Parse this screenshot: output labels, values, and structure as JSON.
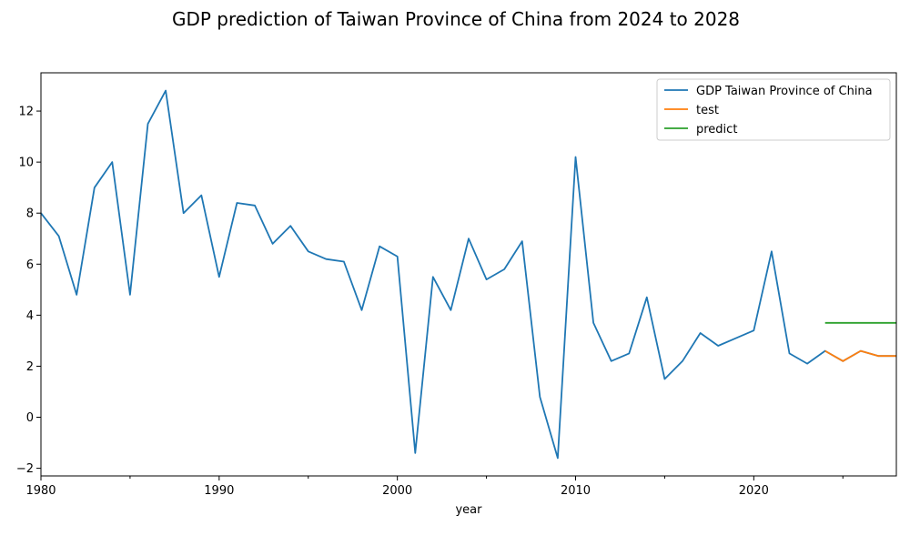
{
  "chart_data": {
    "type": "line",
    "title": "GDP prediction of Taiwan Province of China from 2024 to 2028",
    "xlabel": "year",
    "ylabel": "",
    "xlim": [
      1980,
      2028
    ],
    "ylim": [
      -2.3,
      13.5
    ],
    "x_ticks": [
      1980,
      1990,
      2000,
      2010,
      2020
    ],
    "y_ticks": [
      -2,
      0,
      2,
      4,
      6,
      8,
      10,
      12
    ],
    "grid": false,
    "legend_position": "top-right",
    "series": [
      {
        "name": "GDP Taiwan Province of China",
        "color": "#1f77b4",
        "x": [
          1980,
          1981,
          1982,
          1983,
          1984,
          1985,
          1986,
          1987,
          1988,
          1989,
          1990,
          1991,
          1992,
          1993,
          1994,
          1995,
          1996,
          1997,
          1998,
          1999,
          2000,
          2001,
          2002,
          2003,
          2004,
          2005,
          2006,
          2007,
          2008,
          2009,
          2010,
          2011,
          2012,
          2013,
          2014,
          2015,
          2016,
          2017,
          2018,
          2019,
          2020,
          2021,
          2022,
          2023,
          2024,
          2025,
          2026,
          2027,
          2028
        ],
        "values": [
          8.0,
          7.1,
          4.8,
          9.0,
          10.0,
          4.8,
          11.5,
          12.8,
          8.0,
          8.7,
          5.5,
          8.4,
          8.3,
          6.8,
          7.5,
          6.5,
          6.2,
          6.1,
          4.2,
          6.7,
          6.3,
          -1.4,
          5.5,
          4.2,
          7.0,
          5.4,
          5.8,
          6.9,
          0.8,
          -1.6,
          10.2,
          3.7,
          2.2,
          2.5,
          4.7,
          1.5,
          2.2,
          3.3,
          2.8,
          3.1,
          3.4,
          6.5,
          2.5,
          2.1,
          2.6,
          2.2,
          2.6,
          2.4,
          2.4
        ]
      },
      {
        "name": "test",
        "color": "#ff7f0e",
        "x": [
          2024,
          2025,
          2026,
          2027,
          2028
        ],
        "values": [
          2.6,
          2.2,
          2.6,
          2.4,
          2.4
        ]
      },
      {
        "name": "predict",
        "color": "#2ca02c",
        "x": [
          2024,
          2025,
          2026,
          2027,
          2028
        ],
        "values": [
          3.7,
          3.7,
          3.7,
          3.7,
          3.7
        ]
      }
    ]
  }
}
